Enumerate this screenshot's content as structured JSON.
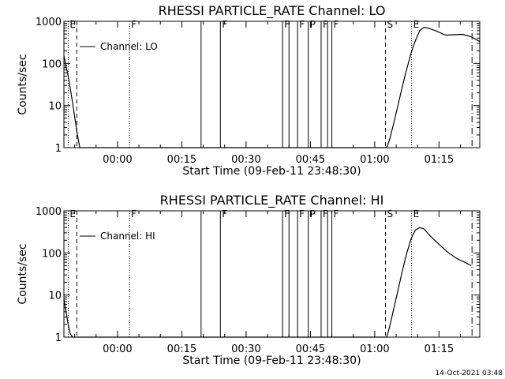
{
  "timestamp": "14-Oct-2021 03:48",
  "chart_data": [
    {
      "type": "line",
      "title": "RHESSI PARTICLE_RATE Channel: LO",
      "xlabel": "Start Time (09-Feb-11 23:48:30)",
      "ylabel": "Counts/sec",
      "ylim": [
        1,
        1000
      ],
      "yscale": "log",
      "xlim_minutes": [
        -12.5,
        84.5
      ],
      "xticks": [
        {
          "value": 0,
          "label": "00:00"
        },
        {
          "value": 15,
          "label": "00:15"
        },
        {
          "value": 30,
          "label": "00:30"
        },
        {
          "value": 45,
          "label": "00:45"
        },
        {
          "value": 60,
          "label": "01:00"
        },
        {
          "value": 75,
          "label": "01:15"
        }
      ],
      "yticks": [
        {
          "value": 1,
          "label": "1"
        },
        {
          "value": 10,
          "label": "10"
        },
        {
          "value": 100,
          "label": "100"
        },
        {
          "value": 1000,
          "label": "1000"
        }
      ],
      "legend": {
        "label": "Channel: LO",
        "position": "top-left"
      },
      "series": [
        {
          "name": "Channel: LO",
          "x": [
            -12.5,
            -11.5,
            -10.5,
            -9.5,
            -8.8,
            62.8,
            63.5,
            64.5,
            65.5,
            66.5,
            67.5,
            68.5,
            69.5,
            70.5,
            71.5,
            72.5,
            74.5,
            76.5,
            78.5,
            80.5,
            82.5,
            84.5
          ],
          "y": [
            150,
            50,
            12,
            2.5,
            1,
            1,
            1.6,
            4,
            11,
            30,
            75,
            180,
            350,
            600,
            720,
            690,
            580,
            470,
            480,
            490,
            430,
            330
          ]
        }
      ],
      "markers": [
        {
          "x": -11.5,
          "label": "E",
          "style": "dotted"
        },
        {
          "x": -9.5,
          "label": "",
          "style": "dashed"
        },
        {
          "x": 2.8,
          "label": "F",
          "style": "dotted"
        },
        {
          "x": 19.5,
          "label": "",
          "style": "solid"
        },
        {
          "x": 24.0,
          "label": "F",
          "style": "solid"
        },
        {
          "x": 38.5,
          "label": "F",
          "style": "solid"
        },
        {
          "x": 40.0,
          "label": "",
          "style": "solid"
        },
        {
          "x": 42.0,
          "label": "F",
          "style": "solid"
        },
        {
          "x": 44.5,
          "label": "P",
          "style": "solid"
        },
        {
          "x": 47.5,
          "label": "F",
          "style": "solid"
        },
        {
          "x": 49.0,
          "label": "",
          "style": "solid"
        },
        {
          "x": 50.0,
          "label": "F",
          "style": "solid"
        },
        {
          "x": 62.5,
          "label": "S",
          "style": "dashed"
        },
        {
          "x": 68.6,
          "label": "E",
          "style": "dotted"
        },
        {
          "x": 82.7,
          "label": "",
          "style": "dashdot"
        }
      ]
    },
    {
      "type": "line",
      "title": "RHESSI PARTICLE_RATE Channel: HI",
      "xlabel": "Start Time (09-Feb-11 23:48:30)",
      "ylabel": "Counts/sec",
      "ylim": [
        1,
        1000
      ],
      "yscale": "log",
      "xlim_minutes": [
        -12.5,
        84.5
      ],
      "xticks": [
        {
          "value": 0,
          "label": "00:00"
        },
        {
          "value": 15,
          "label": "00:15"
        },
        {
          "value": 30,
          "label": "00:30"
        },
        {
          "value": 45,
          "label": "00:45"
        },
        {
          "value": 60,
          "label": "01:00"
        },
        {
          "value": 75,
          "label": "01:15"
        }
      ],
      "yticks": [
        {
          "value": 1,
          "label": "1"
        },
        {
          "value": 10,
          "label": "10"
        },
        {
          "value": 100,
          "label": "100"
        },
        {
          "value": 1000,
          "label": "1000"
        }
      ],
      "legend": {
        "label": "Channel: HI",
        "position": "top-left"
      },
      "series": [
        {
          "name": "Channel: HI",
          "x": [
            -12.5,
            -12.0,
            -11.5,
            -11.0,
            -10.5,
            62.8,
            63.5,
            64.5,
            65.5,
            66.5,
            67.5,
            68.5,
            69.5,
            70.5,
            71.5,
            73.0,
            75.0,
            77.0,
            79.0,
            81.0,
            82.5
          ],
          "y": [
            8,
            4,
            2,
            1.2,
            1,
            1,
            1.8,
            5,
            14,
            40,
            100,
            220,
            350,
            400,
            370,
            250,
            160,
            105,
            75,
            60,
            50
          ]
        }
      ],
      "markers": [
        {
          "x": -11.5,
          "label": "E",
          "style": "dotted"
        },
        {
          "x": -9.5,
          "label": "",
          "style": "dashed"
        },
        {
          "x": 2.8,
          "label": "F",
          "style": "dotted"
        },
        {
          "x": 19.5,
          "label": "",
          "style": "solid"
        },
        {
          "x": 24.0,
          "label": "F",
          "style": "solid"
        },
        {
          "x": 38.5,
          "label": "F",
          "style": "solid"
        },
        {
          "x": 40.0,
          "label": "",
          "style": "solid"
        },
        {
          "x": 42.0,
          "label": "F",
          "style": "solid"
        },
        {
          "x": 44.5,
          "label": "P",
          "style": "solid"
        },
        {
          "x": 47.5,
          "label": "F",
          "style": "solid"
        },
        {
          "x": 49.0,
          "label": "",
          "style": "solid"
        },
        {
          "x": 50.0,
          "label": "F",
          "style": "solid"
        },
        {
          "x": 62.5,
          "label": "S",
          "style": "dashed"
        },
        {
          "x": 68.6,
          "label": "E",
          "style": "dotted"
        },
        {
          "x": 82.7,
          "label": "",
          "style": "dashdot"
        }
      ]
    }
  ]
}
